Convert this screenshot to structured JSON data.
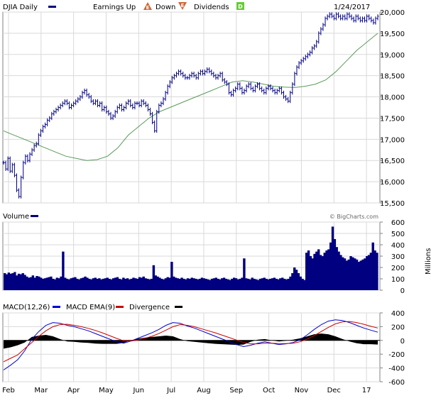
{
  "header": {
    "symbol_label": "DJIA Daily",
    "earnings_label": "Earnings Up",
    "earnings_up_glyph": "E",
    "down_label": "Down",
    "earnings_down_glyph": "E",
    "dividends_label": "Dividends",
    "dividend_glyph": "D",
    "date": "1/24/2017"
  },
  "volume_header": {
    "label": "Volume",
    "watermark": "© BigCharts.com",
    "units": "Millions"
  },
  "macd_header": {
    "macd_label": "MACD(12,26)",
    "ema_label": "MACD EMA(9)",
    "divergence_label": "Divergence"
  },
  "colors": {
    "price": "#000080",
    "moving_average": "#5a9a5a",
    "volume": "#000080",
    "macd": "#0000cc",
    "ema": "#cc0000",
    "divergence": "#000000",
    "grid": "#d9d9d9",
    "earnings_up": "#cc6633",
    "dividend": "#66cc33"
  },
  "chart_data": [
    {
      "type": "line",
      "name": "price",
      "y_axis_side": "right",
      "ylim": [
        15500,
        20000
      ],
      "y_ticks": [
        "15,500",
        "16,000",
        "16,500",
        "17,000",
        "17,500",
        "18,000",
        "18,500",
        "19,000",
        "19,500",
        "20,000"
      ],
      "x_labels": [
        "Feb",
        "Mar",
        "Apr",
        "May",
        "Jun",
        "Jul",
        "Aug",
        "Sep",
        "Oct",
        "Nov",
        "Dec",
        "17"
      ],
      "grid": true,
      "series": [
        {
          "role": "price_bars",
          "values": [
            16450,
            16300,
            16550,
            16250,
            16400,
            16150,
            15800,
            15650,
            16100,
            16450,
            16600,
            16500,
            16650,
            16750,
            16850,
            16900,
            17100,
            17200,
            17300,
            17350,
            17450,
            17500,
            17600,
            17650,
            17700,
            17750,
            17800,
            17850,
            17900,
            17850,
            17750,
            17800,
            17850,
            17900,
            17950,
            18000,
            18100,
            18150,
            18050,
            18000,
            17900,
            17850,
            17900,
            17800,
            17850,
            17700,
            17750,
            17650,
            17600,
            17500,
            17550,
            17650,
            17750,
            17800,
            17700,
            17750,
            17850,
            17900,
            17800,
            17750,
            17850,
            17850,
            17800,
            17900,
            17850,
            17800,
            17700,
            17600,
            17400,
            17200,
            17650,
            17800,
            17850,
            17950,
            18100,
            18250,
            18350,
            18450,
            18500,
            18550,
            18600,
            18550,
            18500,
            18450,
            18450,
            18500,
            18550,
            18500,
            18450,
            18550,
            18600,
            18550,
            18600,
            18650,
            18600,
            18550,
            18500,
            18450,
            18500,
            18550,
            18400,
            18350,
            18300,
            18100,
            18050,
            18150,
            18200,
            18300,
            18200,
            18100,
            18150,
            18250,
            18300,
            18200,
            18150,
            18250,
            18300,
            18200,
            18150,
            18100,
            18200,
            18250,
            18200,
            18150,
            18100,
            18150,
            18200,
            18100,
            18000,
            17950,
            17900,
            18100,
            18300,
            18550,
            18700,
            18800,
            18850,
            18900,
            18950,
            19000,
            19050,
            19150,
            19200,
            19300,
            19500,
            19600,
            19700,
            19850,
            19900,
            19950,
            19900,
            19850,
            19950,
            19900,
            19850,
            19900,
            19850,
            19950,
            19900,
            19850,
            19800,
            19900,
            19850,
            19800,
            19850,
            19800,
            19900,
            19850,
            19800,
            19750,
            19850,
            19900
          ]
        },
        {
          "role": "moving_average",
          "values": [
            17200,
            17100,
            17000,
            16900,
            16800,
            16700,
            16600,
            16550,
            16500,
            16520,
            16600,
            16800,
            17100,
            17300,
            17500,
            17650,
            17750,
            17850,
            17950,
            18050,
            18150,
            18250,
            18350,
            18380,
            18350,
            18300,
            18250,
            18230,
            18220,
            18250,
            18300,
            18400,
            18600,
            18850,
            19100,
            19300,
            19500
          ]
        }
      ]
    },
    {
      "type": "bar",
      "name": "volume",
      "y_axis_side": "right",
      "ylim": [
        0,
        600
      ],
      "y_ticks": [
        "600",
        "500",
        "400",
        "300",
        "200",
        "100",
        "0"
      ],
      "ylabel": "Millions",
      "grid": true,
      "values": [
        150,
        140,
        155,
        145,
        150,
        160,
        130,
        145,
        140,
        150,
        135,
        120,
        110,
        115,
        130,
        110,
        125,
        120,
        110,
        100,
        105,
        110,
        115,
        120,
        100,
        95,
        110,
        105,
        120,
        340,
        110,
        100,
        95,
        105,
        110,
        115,
        100,
        95,
        105,
        110,
        120,
        110,
        100,
        95,
        105,
        110,
        100,
        105,
        95,
        100,
        105,
        110,
        100,
        95,
        105,
        110,
        115,
        100,
        95,
        110,
        100,
        105,
        95,
        100,
        110,
        105,
        100,
        115,
        110,
        120,
        105,
        100,
        95,
        100,
        220,
        130,
        120,
        110,
        100,
        95,
        105,
        115,
        110,
        250,
        120,
        110,
        105,
        100,
        110,
        100,
        95,
        105,
        100,
        110,
        105,
        100,
        95,
        100,
        110,
        105,
        100,
        95,
        90,
        100,
        105,
        110,
        100,
        95,
        105,
        110,
        100,
        95,
        90,
        100,
        110,
        105,
        95,
        100,
        110,
        280,
        105,
        100,
        95,
        110,
        100,
        95,
        90,
        100,
        105,
        110,
        100,
        95,
        100,
        105,
        110,
        100,
        95,
        105,
        110,
        100,
        95,
        100,
        120,
        150,
        200,
        180,
        150,
        120,
        100,
        90,
        330,
        350,
        300,
        280,
        320,
        340,
        360,
        310,
        300,
        330,
        350,
        360,
        420,
        560,
        450,
        380,
        340,
        310,
        290,
        280,
        260,
        270,
        300,
        290,
        280,
        270,
        250,
        260,
        270,
        280,
        300,
        310,
        330,
        420,
        350,
        330
      ]
    },
    {
      "type": "line",
      "name": "macd",
      "y_axis_side": "right",
      "ylim": [
        -600,
        400
      ],
      "y_ticks": [
        "400",
        "200",
        "0",
        "-200",
        "-400",
        "-600"
      ],
      "grid": true,
      "series": [
        {
          "role": "macd",
          "values": [
            -430,
            -360,
            -280,
            -150,
            20,
            130,
            220,
            260,
            250,
            220,
            200,
            170,
            140,
            100,
            60,
            20,
            -20,
            -40,
            -10,
            30,
            70,
            110,
            160,
            220,
            260,
            250,
            210,
            180,
            140,
            100,
            60,
            20,
            -20,
            -60,
            -90,
            -70,
            -40,
            -20,
            -40,
            -60,
            -50,
            -30,
            10,
            80,
            160,
            230,
            280,
            300,
            290,
            260,
            220,
            180,
            150,
            120
          ]
        },
        {
          "role": "ema",
          "values": [
            -310,
            -260,
            -210,
            -120,
            -30,
            60,
            140,
            200,
            230,
            235,
            220,
            200,
            175,
            145,
            110,
            70,
            30,
            -5,
            -10,
            5,
            30,
            60,
            100,
            150,
            200,
            230,
            220,
            200,
            170,
            140,
            110,
            75,
            40,
            5,
            -30,
            -50,
            -50,
            -40,
            -40,
            -45,
            -45,
            -40,
            -20,
            20,
            70,
            130,
            190,
            240,
            270,
            275,
            260,
            235,
            205,
            180
          ]
        },
        {
          "role": "divergence",
          "values": [
            -120,
            -100,
            -70,
            -30,
            50,
            70,
            80,
            60,
            20,
            -15,
            -20,
            -30,
            -35,
            -45,
            -50,
            -50,
            -50,
            -35,
            0,
            25,
            40,
            50,
            60,
            70,
            60,
            20,
            -10,
            -20,
            -30,
            -40,
            -50,
            -55,
            -60,
            -65,
            -60,
            -20,
            10,
            20,
            0,
            -15,
            -5,
            10,
            30,
            60,
            90,
            100,
            90,
            60,
            20,
            -15,
            -40,
            -55,
            -55,
            -60
          ]
        }
      ]
    }
  ]
}
